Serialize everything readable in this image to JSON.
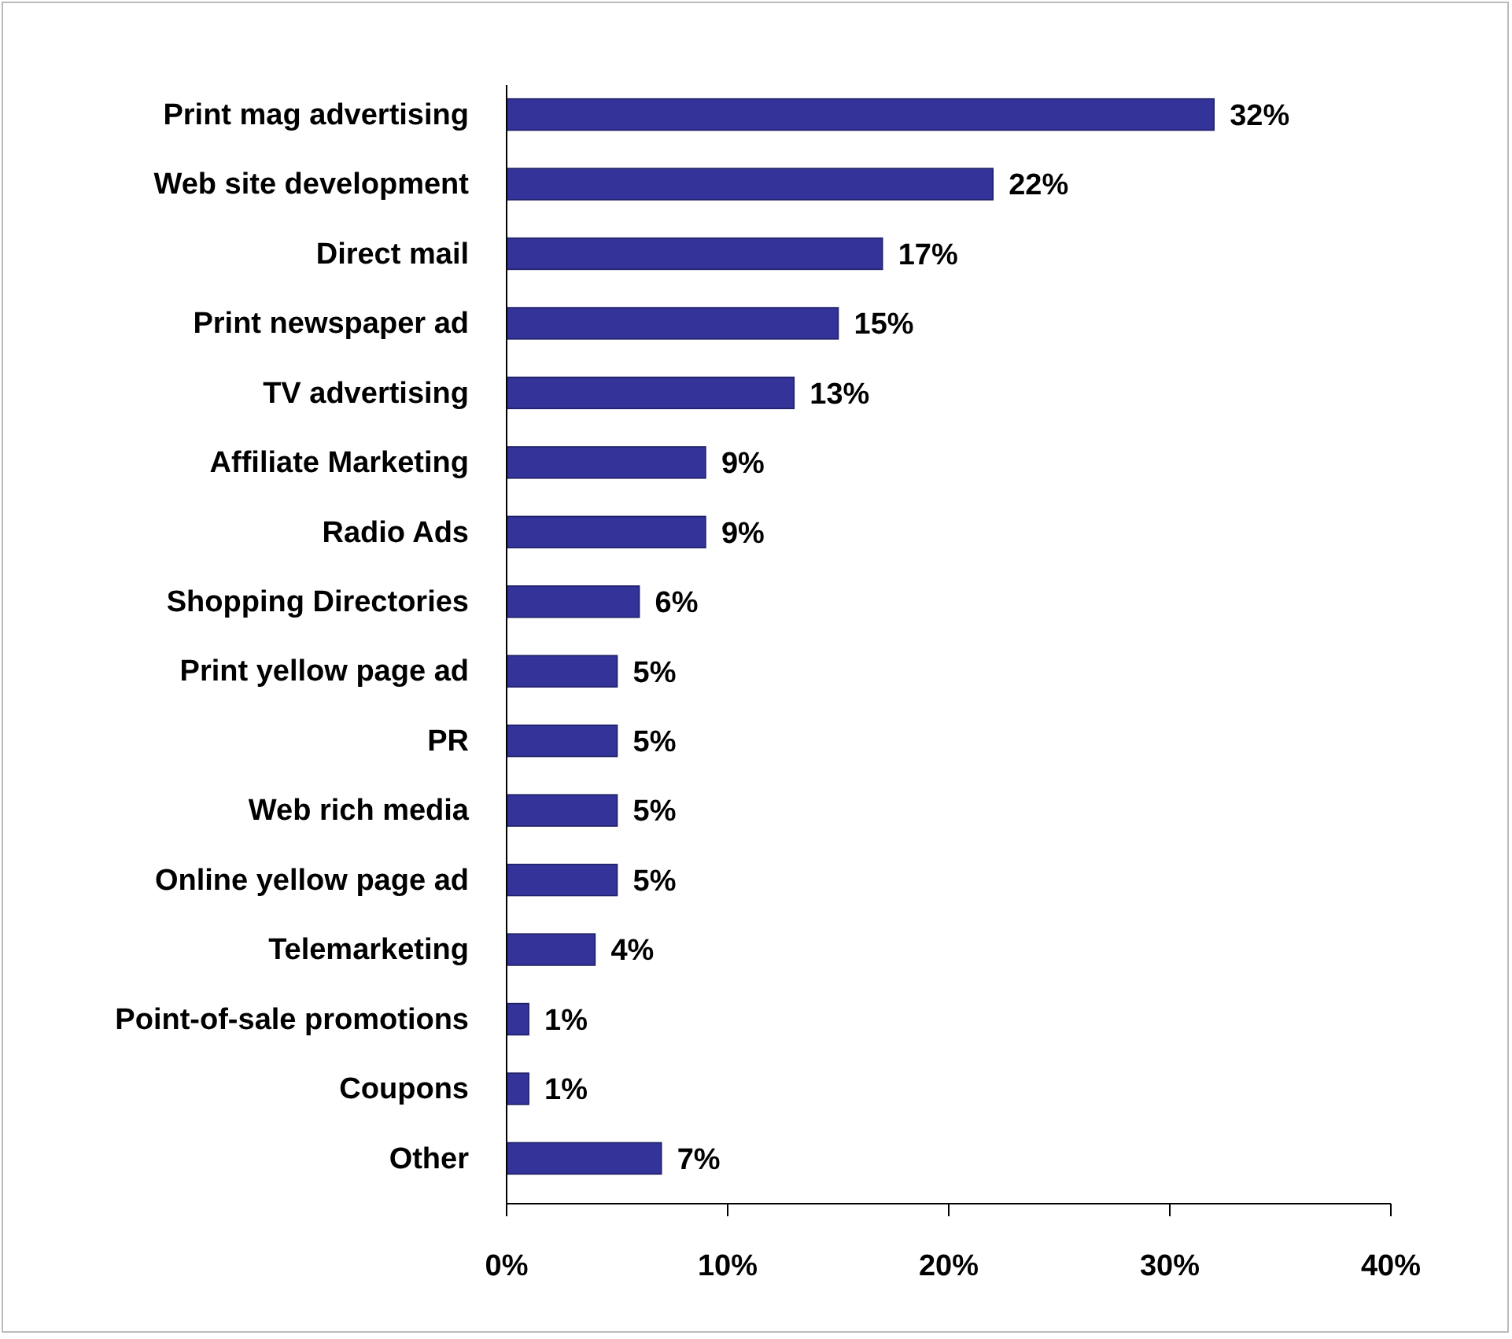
{
  "chart_data": {
    "type": "bar",
    "orientation": "horizontal",
    "categories": [
      "Print mag advertising",
      "Web site development",
      "Direct mail",
      "Print newspaper ad",
      "TV advertising",
      "Affiliate Marketing",
      "Radio Ads",
      "Shopping Directories",
      "Print yellow page ad",
      "PR",
      "Web rich media",
      "Online yellow page ad",
      "Telemarketing",
      "Point-of-sale promotions",
      "Coupons",
      "Other"
    ],
    "values": [
      32,
      22,
      17,
      15,
      13,
      9,
      9,
      6,
      5,
      5,
      5,
      5,
      4,
      1,
      1,
      7
    ],
    "value_labels": [
      "32%",
      "22%",
      "17%",
      "15%",
      "13%",
      "9%",
      "9%",
      "6%",
      "5%",
      "5%",
      "5%",
      "5%",
      "4%",
      "1%",
      "1%",
      "7%"
    ],
    "color": "#333399",
    "xlim": [
      0,
      40
    ],
    "xticks": [
      {
        "value": 0,
        "label": "0%"
      },
      {
        "value": 10,
        "label": "10%"
      },
      {
        "value": 20,
        "label": "20%"
      },
      {
        "value": 30,
        "label": "30%"
      },
      {
        "value": 40,
        "label": "40%"
      }
    ],
    "grid": false
  }
}
